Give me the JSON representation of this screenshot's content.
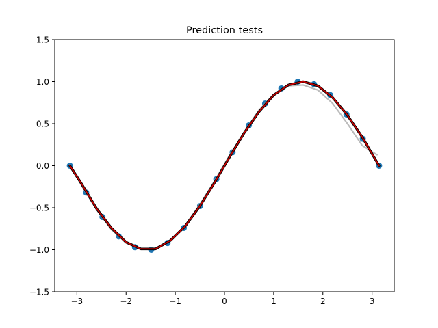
{
  "chart_data": {
    "type": "line",
    "title": "Prediction tests",
    "xlabel": "",
    "ylabel": "",
    "xlim": [
      -3.45,
      3.45
    ],
    "ylim": [
      -1.5,
      1.5
    ],
    "x_ticks": [
      -3,
      -2,
      -1,
      0,
      1,
      2,
      3
    ],
    "x_tick_labels": [
      "−3",
      "−2",
      "−1",
      "0",
      "1",
      "2",
      "3"
    ],
    "y_ticks": [
      -1.5,
      -1.0,
      -0.5,
      0.0,
      0.5,
      1.0,
      1.5
    ],
    "y_tick_labels": [
      "−1.5",
      "−1.0",
      "−0.5",
      "0.0",
      "0.5",
      "1.0",
      "1.5"
    ],
    "grid": false,
    "legend": "none",
    "series": [
      {
        "kind": "scatter",
        "color": "#1f77b4",
        "x": [
          -3.142,
          -2.811,
          -2.48,
          -2.15,
          -1.819,
          -1.488,
          -1.157,
          -0.827,
          -0.496,
          -0.165,
          0.165,
          0.496,
          0.827,
          1.157,
          1.488,
          1.819,
          2.15,
          2.48,
          2.811,
          3.142
        ],
        "y": [
          0.0,
          -0.32,
          -0.61,
          -0.84,
          -0.97,
          -1.0,
          -0.92,
          -0.74,
          -0.48,
          -0.16,
          0.16,
          0.48,
          0.74,
          0.92,
          1.0,
          0.97,
          0.84,
          0.61,
          0.32,
          0.0
        ]
      },
      {
        "kind": "line",
        "color": "#aaaaaa",
        "opacity": 0.8,
        "x": [
          -3.142,
          -2.9,
          -2.6,
          -2.3,
          -2.0,
          -1.7,
          -1.4,
          -1.1,
          -0.8,
          -0.5,
          -0.2,
          0.1,
          0.4,
          0.7,
          1.0,
          1.3,
          1.6,
          1.9,
          2.2,
          2.5,
          2.8,
          3.1
        ],
        "y": [
          0.01,
          -0.24,
          -0.52,
          -0.76,
          -0.91,
          -0.99,
          -0.98,
          -0.89,
          -0.71,
          -0.46,
          -0.18,
          0.12,
          0.4,
          0.66,
          0.85,
          0.95,
          0.96,
          0.9,
          0.74,
          0.5,
          0.24,
          0.13
        ]
      },
      {
        "kind": "line",
        "color": "#000000",
        "x": [
          -3.142,
          -2.9,
          -2.6,
          -2.3,
          -2.0,
          -1.7,
          -1.4,
          -1.1,
          -0.8,
          -0.5,
          -0.2,
          0.1,
          0.4,
          0.7,
          1.0,
          1.3,
          1.6,
          1.9,
          2.2,
          2.5,
          2.8,
          3.142
        ],
        "y": [
          0.0,
          -0.22,
          -0.51,
          -0.74,
          -0.91,
          -0.99,
          -0.99,
          -0.89,
          -0.72,
          -0.48,
          -0.2,
          0.1,
          0.39,
          0.64,
          0.84,
          0.96,
          1.0,
          0.95,
          0.81,
          0.6,
          0.34,
          0.0
        ]
      },
      {
        "kind": "line",
        "color": "#cc0000",
        "x": [
          -3.142,
          -2.9,
          -2.6,
          -2.3,
          -2.0,
          -1.7,
          -1.4,
          -1.1,
          -0.8,
          -0.5,
          -0.2,
          0.1,
          0.4,
          0.7,
          1.0,
          1.3,
          1.6,
          1.9,
          2.2,
          2.5,
          2.8,
          3.142
        ],
        "y": [
          0.0,
          -0.22,
          -0.51,
          -0.74,
          -0.91,
          -0.99,
          -0.99,
          -0.89,
          -0.72,
          -0.48,
          -0.2,
          0.1,
          0.39,
          0.64,
          0.84,
          0.96,
          1.0,
          0.95,
          0.81,
          0.6,
          0.34,
          0.0
        ]
      }
    ]
  }
}
